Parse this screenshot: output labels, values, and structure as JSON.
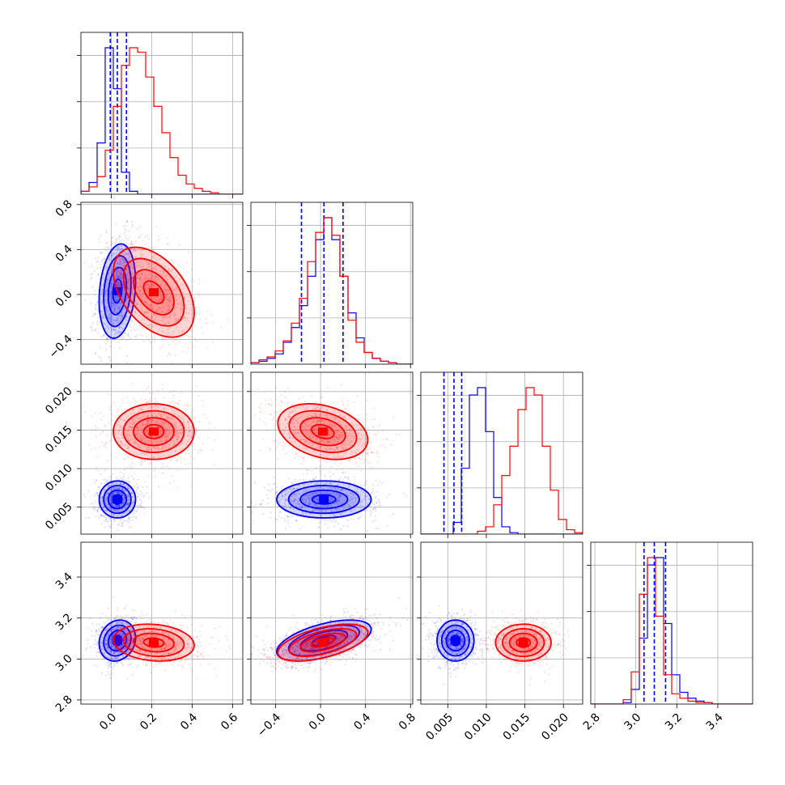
{
  "chart_data": {
    "type": "corner",
    "parameters": [
      {
        "range": [
          -0.15,
          0.65
        ],
        "ticks": [
          0.0,
          0.2,
          0.4,
          0.6
        ],
        "tick_labels": [
          "0.0",
          "0.2",
          "0.4",
          "0.6"
        ],
        "show_y_labels": false
      },
      {
        "range": [
          -0.62,
          0.82
        ],
        "ticks": [
          -0.4,
          0.0,
          0.4,
          0.8
        ],
        "tick_labels": [
          "−0.4",
          "0.0",
          "0.4",
          "0.8"
        ],
        "show_y_labels": true
      },
      {
        "range": [
          0.0015,
          0.0225
        ],
        "ticks": [
          0.005,
          0.01,
          0.015,
          0.02
        ],
        "tick_labels": [
          "0.005",
          "0.010",
          "0.015",
          "0.020"
        ],
        "show_y_labels": true
      },
      {
        "range": [
          2.78,
          3.57
        ],
        "ticks": [
          2.8,
          3.0,
          3.2,
          3.4
        ],
        "tick_labels": [
          "2.8",
          "3.0",
          "3.2",
          "3.4"
        ],
        "show_y_labels": true
      }
    ],
    "series": [
      {
        "color": "#0000ff",
        "means": [
          0.03,
          0.03,
          0.006,
          3.09
        ],
        "stds": [
          0.045,
          0.21,
          0.0012,
          0.05
        ],
        "quantiles": [
          [
            -0.005,
            0.03,
            0.075
          ],
          [
            -0.17,
            0.03,
            0.2
          ],
          [
            0.0045,
            0.0058,
            0.0068
          ],
          [
            3.04,
            3.09,
            3.145
          ]
        ],
        "correlations": [
          [
            0,
            1,
            0.2
          ],
          [
            0,
            3,
            0.15
          ],
          [
            1,
            3,
            0.55
          ]
        ],
        "hist_profiles": [
          [
            0.02,
            0.08,
            0.35,
            1.0,
            0.72,
            0.15,
            0.02,
            0.0,
            0,
            0,
            0,
            0,
            0,
            0,
            0,
            0,
            0,
            0,
            0,
            0
          ],
          [
            0.01,
            0.02,
            0.04,
            0.07,
            0.15,
            0.25,
            0.4,
            0.6,
            0.85,
            1.0,
            0.85,
            0.6,
            0.35,
            0.18,
            0.08,
            0.04,
            0.02,
            0.01,
            0.0,
            0.0
          ],
          [
            0,
            0,
            0,
            0,
            0.08,
            0.45,
            0.95,
            1.0,
            0.7,
            0.25,
            0.05,
            0.01,
            0,
            0,
            0,
            0,
            0,
            0,
            0,
            0
          ],
          [
            0,
            0,
            0,
            0,
            0.01,
            0.1,
            0.45,
            0.95,
            1.0,
            0.55,
            0.2,
            0.08,
            0.04,
            0.02,
            0.01,
            0.0,
            0,
            0,
            0,
            0
          ]
        ]
      },
      {
        "color": "#ff0000",
        "means": [
          0.21,
          0.02,
          0.0148,
          3.08
        ],
        "stds": [
          0.1,
          0.2,
          0.0018,
          0.045
        ],
        "quantiles": [],
        "correlations": [
          [
            0,
            1,
            -0.45
          ],
          [
            0,
            3,
            -0.15
          ],
          [
            1,
            2,
            -0.3
          ],
          [
            1,
            3,
            0.55
          ]
        ],
        "hist_profiles": [
          [
            0.02,
            0.05,
            0.12,
            0.3,
            0.6,
            0.88,
            1.0,
            0.97,
            0.8,
            0.6,
            0.42,
            0.25,
            0.13,
            0.07,
            0.04,
            0.02,
            0.01,
            0.0,
            0,
            0
          ],
          [
            0.01,
            0.03,
            0.05,
            0.09,
            0.16,
            0.28,
            0.45,
            0.7,
            0.9,
            1.0,
            0.88,
            0.6,
            0.3,
            0.15,
            0.08,
            0.04,
            0.02,
            0.01,
            0.0,
            0.0
          ],
          [
            0,
            0,
            0,
            0,
            0,
            0,
            0,
            0.02,
            0.05,
            0.2,
            0.4,
            0.6,
            0.85,
            1.0,
            0.95,
            0.6,
            0.3,
            0.1,
            0.03,
            0.01
          ],
          [
            0,
            0,
            0,
            0,
            0.03,
            0.22,
            0.75,
            1.0,
            0.6,
            0.2,
            0.07,
            0.04,
            0.02,
            0.01,
            0.01,
            0.0,
            0,
            0,
            0,
            0
          ]
        ]
      }
    ],
    "quantile_line_color": "#0000ff",
    "quantile_line_style": "dashed",
    "grid": true
  }
}
